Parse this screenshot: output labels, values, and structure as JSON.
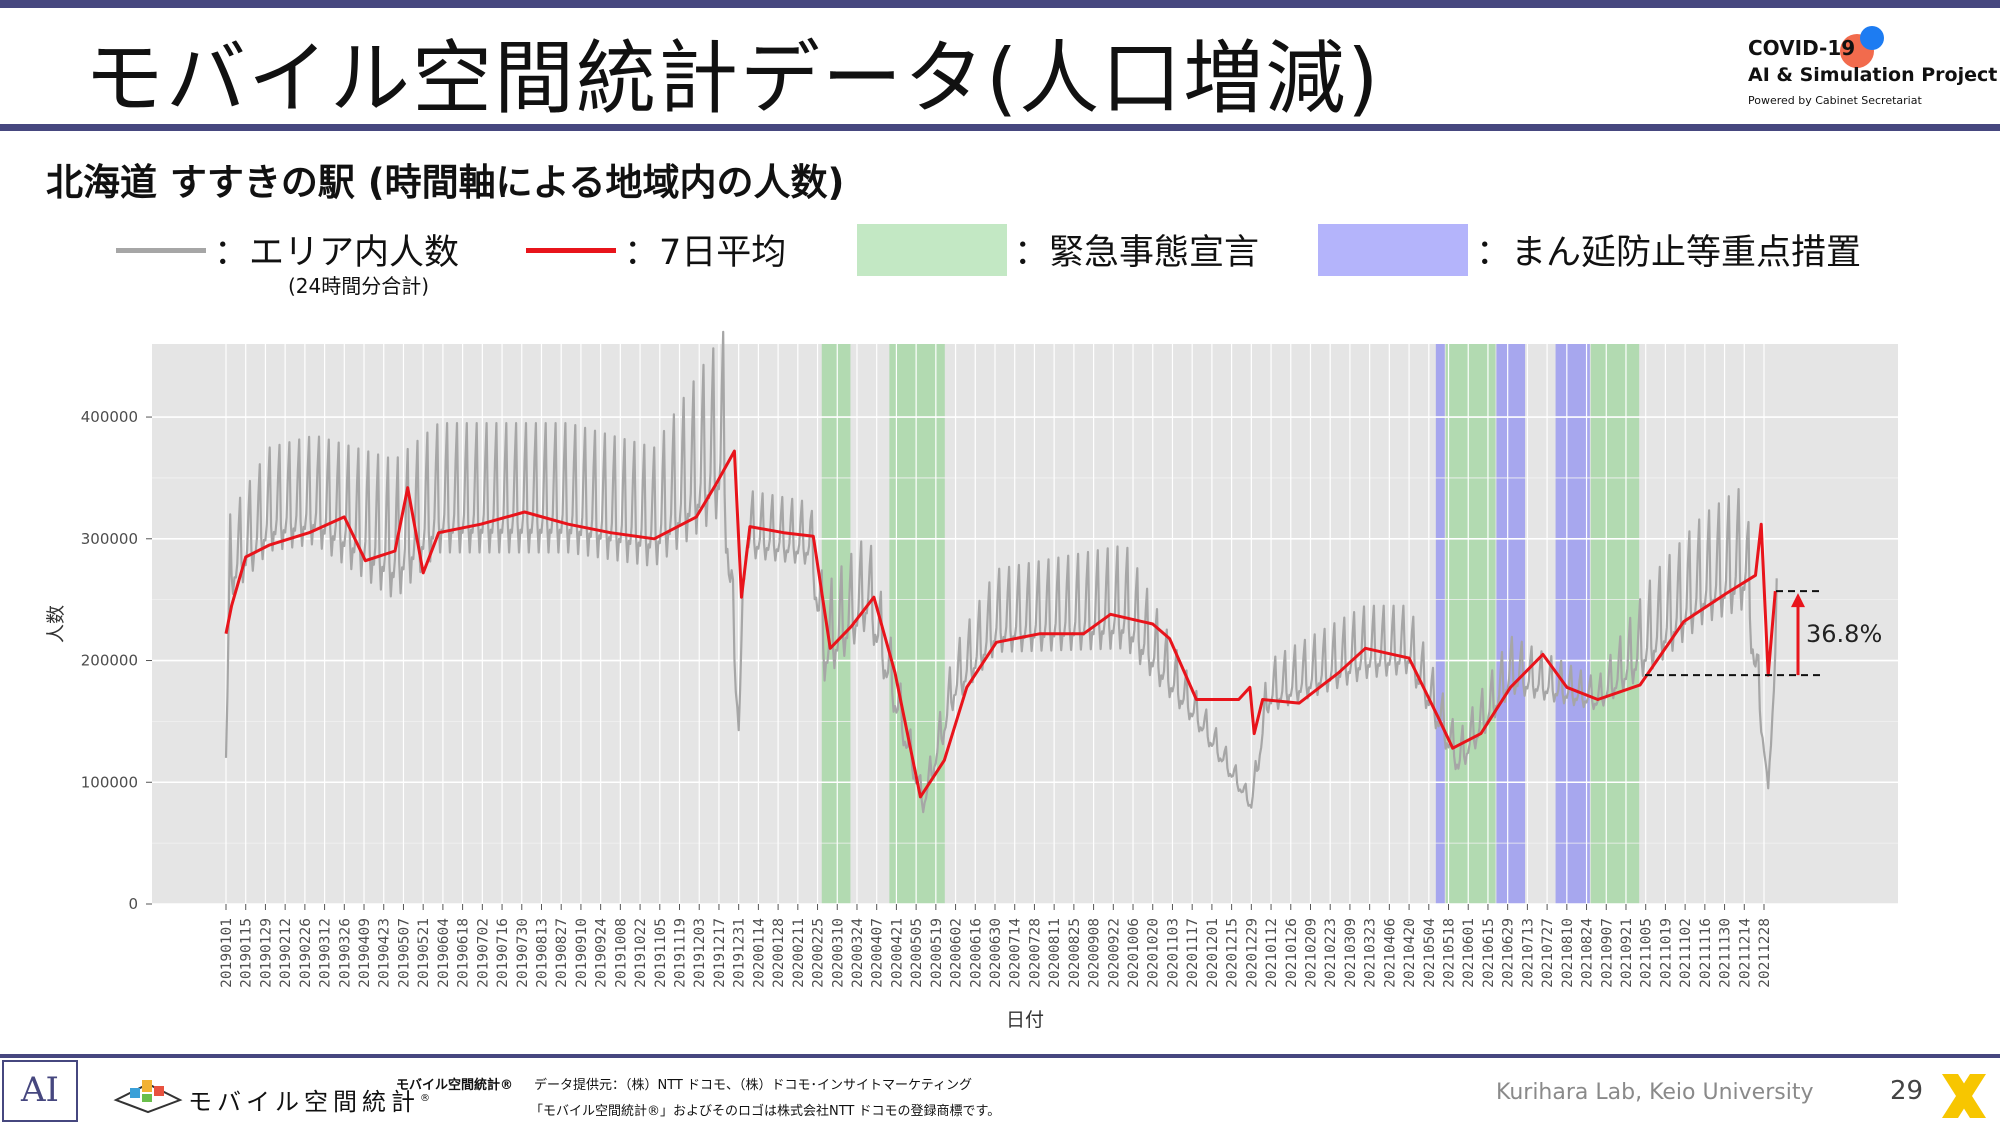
{
  "header": {
    "title": "モバイル空間統計データ(人口増減)",
    "logo_line1": "COVID-19",
    "logo_line2": "AI & Simulation Project",
    "logo_line3": "Powered by Cabinet Secretariat"
  },
  "subtitle": "北海道 すすきの駅 (時間軸による地域内の人数)",
  "legend": {
    "area_label": "：エリア内人数",
    "area_note": "(24時間分合計)",
    "avg_label": "：7日平均",
    "emergency_label": "：緊急事態宣言",
    "priority_label": "：まん延防止等重点措置"
  },
  "colors": {
    "raw": "#a6a6a6",
    "avg": "#e8141b",
    "emergency": "#a9d8a8",
    "priority": "#9c9cf0",
    "panel": "#e5e5e5",
    "accent": "#46477f"
  },
  "annotation": {
    "label": "36.8%",
    "from": 188000,
    "to": 257000
  },
  "chart_data": {
    "type": "line",
    "xlabel": "日付",
    "ylabel": "人数",
    "ylim": [
      0,
      460000
    ],
    "yticks": [
      0,
      100000,
      200000,
      300000,
      400000
    ],
    "ytick_labels": [
      "0",
      "100000",
      "200000",
      "300000",
      "400000"
    ],
    "grid": true,
    "legend_position": "top",
    "x_tick_labels": [
      "20190101",
      "20190115",
      "20190129",
      "20190212",
      "20190226",
      "20190312",
      "20190326",
      "20190409",
      "20190423",
      "20190507",
      "20190521",
      "20190604",
      "20190618",
      "20190702",
      "20190716",
      "20190730",
      "20190813",
      "20190827",
      "20190910",
      "20190924",
      "20191008",
      "20191022",
      "20191105",
      "20191119",
      "20191203",
      "20191217",
      "20191231",
      "20200114",
      "20200128",
      "20200211",
      "20200225",
      "20200310",
      "20200324",
      "20200407",
      "20200421",
      "20200505",
      "20200519",
      "20200602",
      "20200616",
      "20200630",
      "20200714",
      "20200728",
      "20200811",
      "20200825",
      "20200908",
      "20200922",
      "20201006",
      "20201020",
      "20201103",
      "20201117",
      "20201201",
      "20201215",
      "20201229",
      "20210112",
      "20210126",
      "20210209",
      "20210223",
      "20210309",
      "20210323",
      "20210406",
      "20210420",
      "20210504",
      "20210518",
      "20210601",
      "20210615",
      "20210629",
      "20210713",
      "20210727",
      "20210810",
      "20210824",
      "20210907",
      "20210921",
      "20211005",
      "20211019",
      "20211102",
      "20211116",
      "20211130",
      "20211214",
      "20211228"
    ],
    "shaded_periods": [
      {
        "type": "emergency",
        "start": "20200228",
        "end": "20200319"
      },
      {
        "type": "emergency",
        "start": "20200416",
        "end": "20200525"
      },
      {
        "type": "priority",
        "start": "20210509",
        "end": "20210515"
      },
      {
        "type": "emergency",
        "start": "20210516",
        "end": "20210620"
      },
      {
        "type": "priority",
        "start": "20210621",
        "end": "20210711"
      },
      {
        "type": "priority",
        "start": "20210802",
        "end": "20210826"
      },
      {
        "type": "emergency",
        "start": "20210827",
        "end": "20210930"
      }
    ],
    "series": [
      {
        "name": "エリア内人数",
        "style": "weekly_oscillation",
        "daily_range": [
          [
            "20190101",
            120000,
            120000
          ],
          [
            "20190104",
            240000,
            320000
          ],
          [
            "20190201",
            275000,
            375000
          ],
          [
            "20190305",
            280000,
            385000
          ],
          [
            "20190501",
            230000,
            365000
          ],
          [
            "20190601",
            270000,
            395000
          ],
          [
            "20190901",
            270000,
            395000
          ],
          [
            "20191101",
            260000,
            375000
          ],
          [
            "20191220",
            295000,
            470000
          ],
          [
            "20191231",
            140000,
            150000
          ],
          [
            "20200105",
            275000,
            340000
          ],
          [
            "20200220",
            270000,
            330000
          ],
          [
            "20200301",
            170000,
            260000
          ],
          [
            "20200401",
            215000,
            305000
          ],
          [
            "20200510",
            72000,
            95000
          ],
          [
            "20200601",
            155000,
            210000
          ],
          [
            "20200701",
            195000,
            275000
          ],
          [
            "20201001",
            195000,
            295000
          ],
          [
            "20201120",
            140000,
            175000
          ],
          [
            "20201229",
            75000,
            90000
          ],
          [
            "20210110",
            150000,
            200000
          ],
          [
            "20210320",
            175000,
            245000
          ],
          [
            "20210420",
            180000,
            245000
          ],
          [
            "20210525",
            100000,
            140000
          ],
          [
            "20210701",
            165000,
            220000
          ],
          [
            "20210901",
            155000,
            185000
          ],
          [
            "20211010",
            180000,
            270000
          ],
          [
            "20211115",
            215000,
            320000
          ],
          [
            "20211215",
            225000,
            345000
          ],
          [
            "20211231",
            95000,
            95000
          ],
          [
            "20220106",
            185000,
            295000
          ]
        ]
      },
      {
        "name": "7日平均",
        "points": [
          [
            "20190101",
            222000
          ],
          [
            "20190105",
            245000
          ],
          [
            "20190115",
            285000
          ],
          [
            "20190201",
            295000
          ],
          [
            "20190301",
            305000
          ],
          [
            "20190326",
            318000
          ],
          [
            "20190410",
            282000
          ],
          [
            "20190501",
            290000
          ],
          [
            "20190510",
            342000
          ],
          [
            "20190521",
            272000
          ],
          [
            "20190601",
            305000
          ],
          [
            "20190701",
            312000
          ],
          [
            "20190801",
            322000
          ],
          [
            "20190901",
            312000
          ],
          [
            "20191001",
            305000
          ],
          [
            "20191101",
            300000
          ],
          [
            "20191201",
            318000
          ],
          [
            "20191215",
            345000
          ],
          [
            "20191228",
            372000
          ],
          [
            "20200102",
            252000
          ],
          [
            "20200108",
            310000
          ],
          [
            "20200201",
            305000
          ],
          [
            "20200222",
            302000
          ],
          [
            "20200305",
            210000
          ],
          [
            "20200320",
            228000
          ],
          [
            "20200405",
            252000
          ],
          [
            "20200420",
            190000
          ],
          [
            "20200508",
            88000
          ],
          [
            "20200525",
            118000
          ],
          [
            "20200610",
            178000
          ],
          [
            "20200701",
            215000
          ],
          [
            "20200801",
            222000
          ],
          [
            "20200901",
            222000
          ],
          [
            "20200920",
            238000
          ],
          [
            "20201020",
            230000
          ],
          [
            "20201101",
            218000
          ],
          [
            "20201120",
            168000
          ],
          [
            "20201220",
            168000
          ],
          [
            "20201228",
            178000
          ],
          [
            "20201231",
            140000
          ],
          [
            "20210106",
            168000
          ],
          [
            "20210201",
            165000
          ],
          [
            "20210301",
            190000
          ],
          [
            "20210320",
            210000
          ],
          [
            "20210420",
            202000
          ],
          [
            "20210510",
            155000
          ],
          [
            "20210521",
            128000
          ],
          [
            "20210610",
            140000
          ],
          [
            "20210701",
            178000
          ],
          [
            "20210724",
            205000
          ],
          [
            "20210810",
            178000
          ],
          [
            "20210901",
            168000
          ],
          [
            "20211001",
            180000
          ],
          [
            "20211101",
            232000
          ],
          [
            "20211201",
            255000
          ],
          [
            "20211222",
            270000
          ],
          [
            "20211226",
            312000
          ],
          [
            "20211231",
            188000
          ],
          [
            "20220105",
            257000
          ]
        ]
      }
    ]
  },
  "footer": {
    "ai_mark": "AI",
    "logo_text": "モバイル空間統計",
    "logo_mark": "®",
    "brand_small": "モバイル空間統計®",
    "provider": "データ提供元：（株）NTT ドコモ、（株）ドコモ･インサイトマーケティング",
    "trademark": "「モバイル空間統計®」およびそのロゴは株式会社NTT ドコモの登録商標です。",
    "lab": "Kurihara Lab, Keio University",
    "page": "29"
  }
}
